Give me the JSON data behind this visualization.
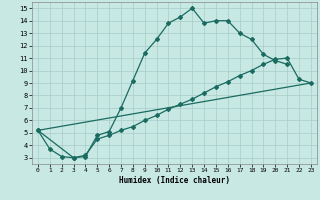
{
  "bg_color": "#c8e8e4",
  "grid_color": "#a8ccc8",
  "line_color": "#1a6b60",
  "xlabel": "Humidex (Indice chaleur)",
  "xlim_min": -0.5,
  "xlim_max": 23.5,
  "ylim_min": 2.5,
  "ylim_max": 15.5,
  "xticks": [
    0,
    1,
    2,
    3,
    4,
    5,
    6,
    7,
    8,
    9,
    10,
    11,
    12,
    13,
    14,
    15,
    16,
    17,
    18,
    19,
    20,
    21,
    22,
    23
  ],
  "yticks": [
    3,
    4,
    5,
    6,
    7,
    8,
    9,
    10,
    11,
    12,
    13,
    14,
    15
  ],
  "curve1_x": [
    0,
    1,
    2,
    3,
    4,
    5,
    6,
    7,
    8,
    9,
    10,
    11,
    12,
    13,
    14,
    15,
    16,
    17,
    18,
    19,
    20,
    21
  ],
  "curve1_y": [
    5.2,
    3.7,
    3.1,
    3.0,
    3.1,
    4.8,
    5.1,
    7.0,
    9.2,
    11.4,
    12.5,
    13.8,
    14.3,
    15.0,
    13.8,
    14.0,
    14.0,
    13.0,
    12.5,
    11.3,
    10.8,
    10.5
  ],
  "curve2_x": [
    0,
    3,
    4,
    5,
    6,
    7,
    8,
    9,
    10,
    11,
    12,
    13,
    14,
    15,
    16,
    17,
    18,
    19,
    20,
    21,
    22,
    23
  ],
  "curve2_y": [
    5.2,
    3.0,
    3.2,
    4.5,
    4.8,
    5.2,
    5.5,
    6.0,
    6.4,
    6.9,
    7.3,
    7.7,
    8.2,
    8.7,
    9.1,
    9.6,
    10.0,
    10.5,
    10.9,
    11.0,
    9.3,
    9.0
  ],
  "line3_x": [
    0,
    23
  ],
  "line3_y": [
    5.2,
    9.0
  ]
}
